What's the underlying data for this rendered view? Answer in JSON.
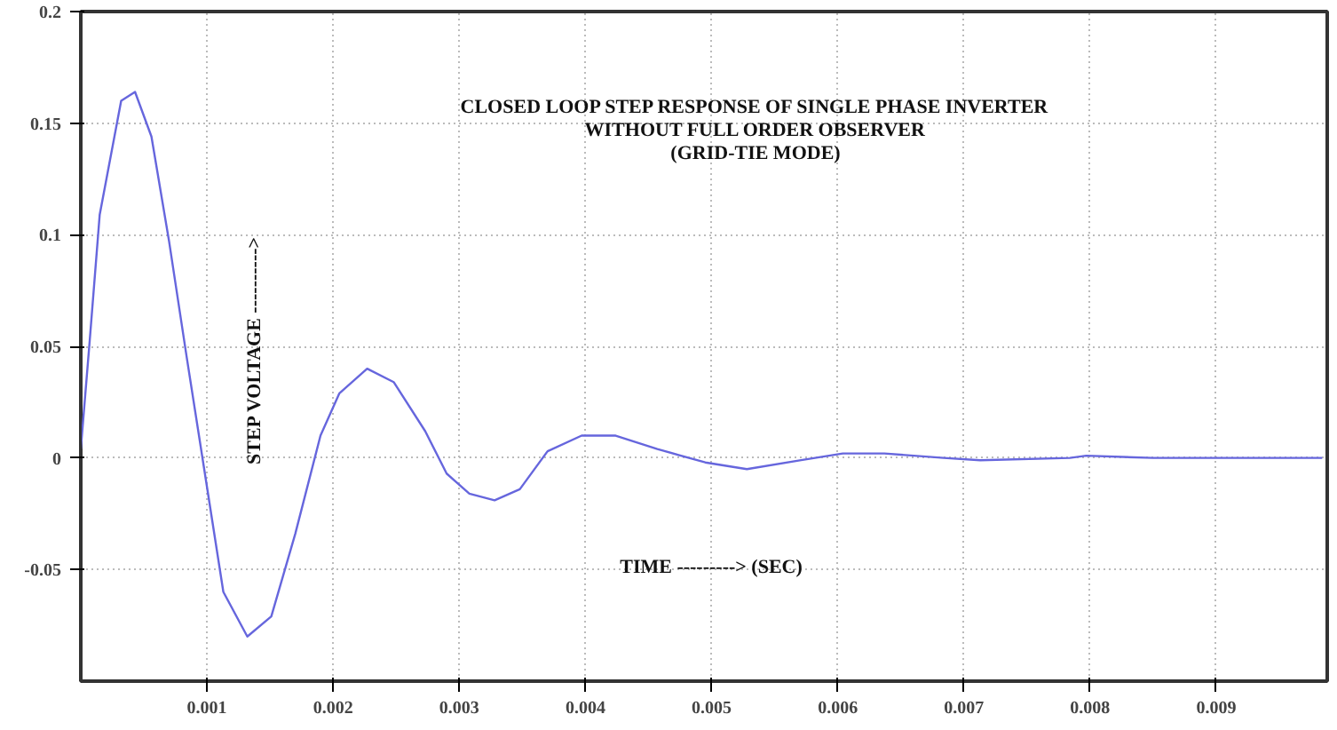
{
  "chart_data": {
    "type": "line",
    "title": "CLOSED LOOP STEP RESPONSE OF SINGLE PHASE INVERTER\nWITHOUT FULL ORDER OBSERVER\n(GRID-TIE MODE)",
    "xlabel": "TIME ---------> (SEC)",
    "ylabel": "STEP VOLTAGE ---------->",
    "xlim": [
      0,
      0.00988
    ],
    "ylim": [
      -0.1,
      0.2
    ],
    "xticks": [
      0.001,
      0.002,
      0.003,
      0.004,
      0.005,
      0.006,
      0.007,
      0.008,
      0.009
    ],
    "yticks": [
      -0.05,
      0,
      0.05,
      0.1,
      0.15,
      0.2
    ],
    "grid": true,
    "line_style": "solid",
    "series": [
      {
        "color": "#6666dd",
        "x": [
          0,
          7e-05,
          0.00015,
          0.00032,
          0.00043,
          0.00056,
          0.0007,
          0.00084,
          0.00097,
          0.00113,
          0.00132,
          0.00151,
          0.0017,
          0.0019,
          0.00205,
          0.00227,
          0.00248,
          0.00273,
          0.0029,
          0.00308,
          0.00328,
          0.00348,
          0.0037,
          0.00397,
          0.00424,
          0.00457,
          0.00495,
          0.00528,
          0.00571,
          0.00604,
          0.00637,
          0.00684,
          0.00713,
          0.00784,
          0.00797,
          0.0085,
          0.00984
        ],
        "values": [
          0.004,
          0.052,
          0.109,
          0.16,
          0.164,
          0.144,
          0.097,
          0.045,
          -0.002,
          -0.06,
          -0.08,
          -0.071,
          -0.034,
          0.01,
          0.029,
          0.04,
          0.034,
          0.012,
          -0.007,
          -0.016,
          -0.019,
          -0.014,
          0.003,
          0.01,
          0.01,
          0.004,
          -0.002,
          -0.005,
          -0.001,
          0.002,
          0.002,
          0,
          -0.001,
          0,
          0.001,
          0,
          0
        ]
      }
    ]
  }
}
